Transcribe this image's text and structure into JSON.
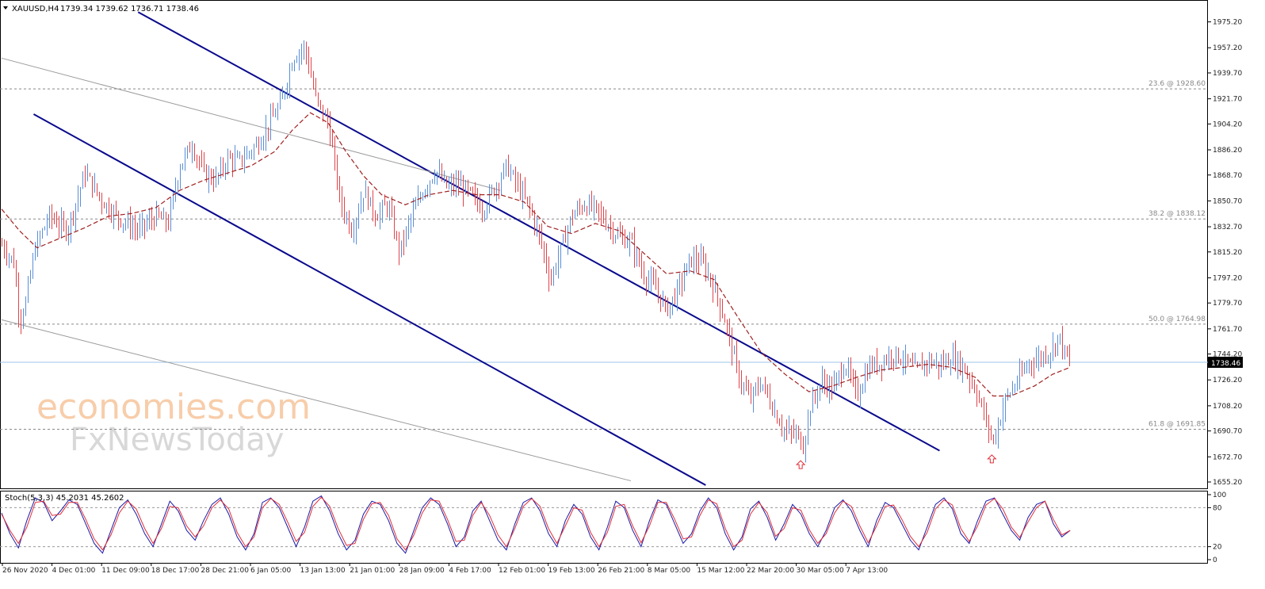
{
  "header": {
    "symbol": "XAUUSD,H4",
    "ohlc": "1739.34 1739.62 1736.71 1738.46"
  },
  "watermark": {
    "line1": "economies.com",
    "line2": "FxNewsToday"
  },
  "colors": {
    "bull": "#5b8fd6",
    "bear": "#e0454b",
    "ma": "#a02020",
    "channel": "#0a0a8c",
    "fib": "#888888",
    "stoch_main": "#1a1aa8",
    "stoch_signal": "#e0303a",
    "current_price_line": "#9fc4e8"
  },
  "chart_data": [
    {
      "type": "line",
      "subtype": "candlestick-bars",
      "title": "XAUUSD,H4",
      "x_tick_labels": [
        "26 Nov 2020",
        "4 Dec 01:00",
        "11 Dec 09:00",
        "18 Dec 17:00",
        "28 Dec 21:00",
        "6 Jan 05:00",
        "13 Jan 13:00",
        "21 Jan 01:00",
        "28 Jan 09:00",
        "4 Feb 17:00",
        "12 Feb 01:00",
        "19 Feb 13:00",
        "26 Feb 21:00",
        "8 Mar 05:00",
        "15 Mar 12:00",
        "22 Mar 20:00",
        "30 Mar 05:00",
        "7 Apr 13:00"
      ],
      "y_tick_labels": [
        "1975.20",
        "1957.20",
        "1939.70",
        "1921.70",
        "1904.20",
        "1886.20",
        "1868.70",
        "1850.70",
        "1832.70",
        "1815.20",
        "1797.20",
        "1779.70",
        "1761.70",
        "1744.20",
        "1726.20",
        "1708.20",
        "1690.70",
        "1672.70",
        "1655.20"
      ],
      "ylim": [
        1653,
        1986
      ],
      "current_price": "1738.46",
      "price_path": [
        {
          "x": 0,
          "y": 1820
        },
        {
          "x": 0.01,
          "y": 1808
        },
        {
          "x": 0.015,
          "y": 1768
        },
        {
          "x": 0.02,
          "y": 1780
        },
        {
          "x": 0.028,
          "y": 1818
        },
        {
          "x": 0.04,
          "y": 1840
        },
        {
          "x": 0.055,
          "y": 1830
        },
        {
          "x": 0.07,
          "y": 1870
        },
        {
          "x": 0.085,
          "y": 1850
        },
        {
          "x": 0.1,
          "y": 1838
        },
        {
          "x": 0.115,
          "y": 1830
        },
        {
          "x": 0.13,
          "y": 1840
        },
        {
          "x": 0.14,
          "y": 1835
        },
        {
          "x": 0.15,
          "y": 1875
        },
        {
          "x": 0.16,
          "y": 1890
        },
        {
          "x": 0.17,
          "y": 1870
        },
        {
          "x": 0.18,
          "y": 1865
        },
        {
          "x": 0.19,
          "y": 1880
        },
        {
          "x": 0.2,
          "y": 1878
        },
        {
          "x": 0.215,
          "y": 1890
        },
        {
          "x": 0.235,
          "y": 1918
        },
        {
          "x": 0.245,
          "y": 1950
        },
        {
          "x": 0.255,
          "y": 1958
        },
        {
          "x": 0.265,
          "y": 1920
        },
        {
          "x": 0.275,
          "y": 1905
        },
        {
          "x": 0.285,
          "y": 1850
        },
        {
          "x": 0.295,
          "y": 1830
        },
        {
          "x": 0.305,
          "y": 1858
        },
        {
          "x": 0.315,
          "y": 1840
        },
        {
          "x": 0.325,
          "y": 1848
        },
        {
          "x": 0.335,
          "y": 1815
        },
        {
          "x": 0.345,
          "y": 1840
        },
        {
          "x": 0.355,
          "y": 1858
        },
        {
          "x": 0.365,
          "y": 1872
        },
        {
          "x": 0.375,
          "y": 1860
        },
        {
          "x": 0.385,
          "y": 1862
        },
        {
          "x": 0.395,
          "y": 1855
        },
        {
          "x": 0.405,
          "y": 1845
        },
        {
          "x": 0.415,
          "y": 1860
        },
        {
          "x": 0.425,
          "y": 1875
        },
        {
          "x": 0.435,
          "y": 1860
        },
        {
          "x": 0.445,
          "y": 1845
        },
        {
          "x": 0.455,
          "y": 1820
        },
        {
          "x": 0.462,
          "y": 1795
        },
        {
          "x": 0.47,
          "y": 1815
        },
        {
          "x": 0.48,
          "y": 1840
        },
        {
          "x": 0.49,
          "y": 1848
        },
        {
          "x": 0.5,
          "y": 1845
        },
        {
          "x": 0.51,
          "y": 1835
        },
        {
          "x": 0.52,
          "y": 1825
        },
        {
          "x": 0.53,
          "y": 1822
        },
        {
          "x": 0.54,
          "y": 1800
        },
        {
          "x": 0.55,
          "y": 1790
        },
        {
          "x": 0.56,
          "y": 1775
        },
        {
          "x": 0.57,
          "y": 1790
        },
        {
          "x": 0.58,
          "y": 1810
        },
        {
          "x": 0.59,
          "y": 1808
        },
        {
          "x": 0.6,
          "y": 1790
        },
        {
          "x": 0.61,
          "y": 1765
        },
        {
          "x": 0.62,
          "y": 1730
        },
        {
          "x": 0.63,
          "y": 1712
        },
        {
          "x": 0.64,
          "y": 1725
        },
        {
          "x": 0.65,
          "y": 1705
        },
        {
          "x": 0.66,
          "y": 1690
        },
        {
          "x": 0.67,
          "y": 1688
        },
        {
          "x": 0.675,
          "y": 1680
        },
        {
          "x": 0.68,
          "y": 1705
        },
        {
          "x": 0.69,
          "y": 1725
        },
        {
          "x": 0.7,
          "y": 1720
        },
        {
          "x": 0.71,
          "y": 1738
        },
        {
          "x": 0.72,
          "y": 1715
        },
        {
          "x": 0.73,
          "y": 1735
        },
        {
          "x": 0.74,
          "y": 1738
        },
        {
          "x": 0.75,
          "y": 1745
        },
        {
          "x": 0.76,
          "y": 1740
        },
        {
          "x": 0.77,
          "y": 1732
        },
        {
          "x": 0.78,
          "y": 1740
        },
        {
          "x": 0.79,
          "y": 1736
        },
        {
          "x": 0.8,
          "y": 1742
        },
        {
          "x": 0.81,
          "y": 1735
        },
        {
          "x": 0.82,
          "y": 1720
        },
        {
          "x": 0.828,
          "y": 1700
        },
        {
          "x": 0.835,
          "y": 1683
        },
        {
          "x": 0.845,
          "y": 1712
        },
        {
          "x": 0.855,
          "y": 1725
        },
        {
          "x": 0.865,
          "y": 1738
        },
        {
          "x": 0.875,
          "y": 1742
        },
        {
          "x": 0.885,
          "y": 1748
        },
        {
          "x": 0.89,
          "y": 1758
        },
        {
          "x": 0.895,
          "y": 1745
        },
        {
          "x": 0.9,
          "y": 1738
        }
      ],
      "moving_average_path": [
        {
          "x": 0,
          "y": 1845
        },
        {
          "x": 0.015,
          "y": 1830
        },
        {
          "x": 0.03,
          "y": 1818
        },
        {
          "x": 0.05,
          "y": 1825
        },
        {
          "x": 0.07,
          "y": 1832
        },
        {
          "x": 0.09,
          "y": 1840
        },
        {
          "x": 0.11,
          "y": 1842
        },
        {
          "x": 0.13,
          "y": 1846
        },
        {
          "x": 0.15,
          "y": 1858
        },
        {
          "x": 0.17,
          "y": 1865
        },
        {
          "x": 0.19,
          "y": 1870
        },
        {
          "x": 0.21,
          "y": 1875
        },
        {
          "x": 0.23,
          "y": 1885
        },
        {
          "x": 0.245,
          "y": 1900
        },
        {
          "x": 0.26,
          "y": 1912
        },
        {
          "x": 0.275,
          "y": 1905
        },
        {
          "x": 0.29,
          "y": 1885
        },
        {
          "x": 0.305,
          "y": 1868
        },
        {
          "x": 0.32,
          "y": 1855
        },
        {
          "x": 0.34,
          "y": 1848
        },
        {
          "x": 0.36,
          "y": 1855
        },
        {
          "x": 0.38,
          "y": 1858
        },
        {
          "x": 0.4,
          "y": 1855
        },
        {
          "x": 0.42,
          "y": 1855
        },
        {
          "x": 0.44,
          "y": 1850
        },
        {
          "x": 0.46,
          "y": 1833
        },
        {
          "x": 0.48,
          "y": 1828
        },
        {
          "x": 0.5,
          "y": 1835
        },
        {
          "x": 0.52,
          "y": 1830
        },
        {
          "x": 0.54,
          "y": 1815
        },
        {
          "x": 0.56,
          "y": 1800
        },
        {
          "x": 0.58,
          "y": 1802
        },
        {
          "x": 0.6,
          "y": 1796
        },
        {
          "x": 0.62,
          "y": 1770
        },
        {
          "x": 0.64,
          "y": 1745
        },
        {
          "x": 0.66,
          "y": 1730
        },
        {
          "x": 0.68,
          "y": 1718
        },
        {
          "x": 0.7,
          "y": 1722
        },
        {
          "x": 0.72,
          "y": 1728
        },
        {
          "x": 0.74,
          "y": 1733
        },
        {
          "x": 0.76,
          "y": 1735
        },
        {
          "x": 0.78,
          "y": 1737
        },
        {
          "x": 0.8,
          "y": 1735
        },
        {
          "x": 0.82,
          "y": 1728
        },
        {
          "x": 0.835,
          "y": 1715
        },
        {
          "x": 0.85,
          "y": 1715
        },
        {
          "x": 0.87,
          "y": 1722
        },
        {
          "x": 0.885,
          "y": 1730
        },
        {
          "x": 0.9,
          "y": 1735
        }
      ],
      "fibonacci_levels": [
        {
          "label": "23.6 @ 1928.60",
          "price": 1928.6
        },
        {
          "label": "38.2 @ 1838.12",
          "price": 1838.12
        },
        {
          "label": "50.0 @ 1764.98",
          "price": 1764.98
        },
        {
          "label": "61.8 @ 1691.85",
          "price": 1691.85
        }
      ],
      "trendlines": [
        {
          "kind": "channel-upper",
          "from": {
            "x": 0.115,
            "y": 1982
          },
          "to": {
            "x": 0.79,
            "y": 1677
          }
        },
        {
          "kind": "channel-lower",
          "from": {
            "x": 0.027,
            "y": 1911
          },
          "to": {
            "x": 0.593,
            "y": 1653
          }
        },
        {
          "kind": "thin-upper",
          "from": {
            "x": 0.0,
            "y": 1950
          },
          "to": {
            "x": 0.42,
            "y": 1858
          }
        },
        {
          "kind": "thin-lower",
          "from": {
            "x": 0.0,
            "y": 1768
          },
          "to": {
            "x": 0.53,
            "y": 1656
          }
        }
      ],
      "markers": [
        {
          "kind": "up-arrow",
          "x": 0.673,
          "price": 1675
        },
        {
          "kind": "up-arrow",
          "x": 0.834,
          "price": 1679
        }
      ]
    },
    {
      "type": "line",
      "title": "Stoch(5,3,3) 45.2031 45.2602",
      "y_tick_labels": [
        "100",
        "80",
        "20",
        "0"
      ],
      "levels": [
        80,
        20
      ],
      "ylim": [
        0,
        100
      ],
      "series": [
        {
          "name": "main",
          "values": [
            72,
            40,
            18,
            60,
            95,
            88,
            60,
            75,
            92,
            85,
            55,
            25,
            10,
            45,
            80,
            92,
            70,
            40,
            20,
            55,
            90,
            75,
            45,
            30,
            60,
            85,
            95,
            70,
            35,
            15,
            40,
            88,
            95,
            80,
            50,
            20,
            50,
            90,
            98,
            75,
            40,
            15,
            30,
            70,
            90,
            85,
            60,
            25,
            10,
            45,
            80,
            95,
            85,
            55,
            20,
            35,
            75,
            90,
            60,
            30,
            15,
            55,
            88,
            95,
            75,
            40,
            20,
            60,
            85,
            70,
            35,
            15,
            50,
            90,
            80,
            45,
            20,
            60,
            92,
            85,
            55,
            25,
            40,
            75,
            95,
            80,
            40,
            15,
            35,
            78,
            90,
            65,
            30,
            55,
            85,
            70,
            40,
            20,
            45,
            80,
            92,
            75,
            45,
            20,
            60,
            88,
            80,
            55,
            30,
            15,
            50,
            85,
            95,
            78,
            40,
            25,
            60,
            90,
            95,
            70,
            45,
            30,
            65,
            85,
            90,
            55,
            35,
            45
          ]
        },
        {
          "name": "signal",
          "values": [
            70,
            45,
            25,
            50,
            88,
            90,
            68,
            70,
            88,
            88,
            62,
            32,
            15,
            38,
            72,
            90,
            78,
            48,
            25,
            48,
            82,
            80,
            52,
            35,
            52,
            80,
            92,
            78,
            42,
            20,
            35,
            80,
            94,
            85,
            58,
            28,
            42,
            82,
            96,
            82,
            48,
            22,
            25,
            62,
            86,
            88,
            68,
            32,
            15,
            38,
            72,
            92,
            90,
            62,
            28,
            30,
            68,
            88,
            68,
            38,
            20,
            48,
            82,
            94,
            82,
            48,
            25,
            52,
            80,
            76,
            42,
            20,
            42,
            82,
            85,
            52,
            26,
            52,
            88,
            88,
            62,
            32,
            35,
            68,
            92,
            86,
            48,
            20,
            30,
            70,
            88,
            72,
            36,
            48,
            80,
            76,
            46,
            25,
            40,
            72,
            90,
            82,
            52,
            26,
            52,
            82,
            84,
            62,
            36,
            20,
            42,
            78,
            92,
            84,
            48,
            28,
            52,
            84,
            94,
            78,
            50,
            34,
            58,
            80,
            90,
            62,
            38,
            45
          ]
        }
      ]
    }
  ]
}
